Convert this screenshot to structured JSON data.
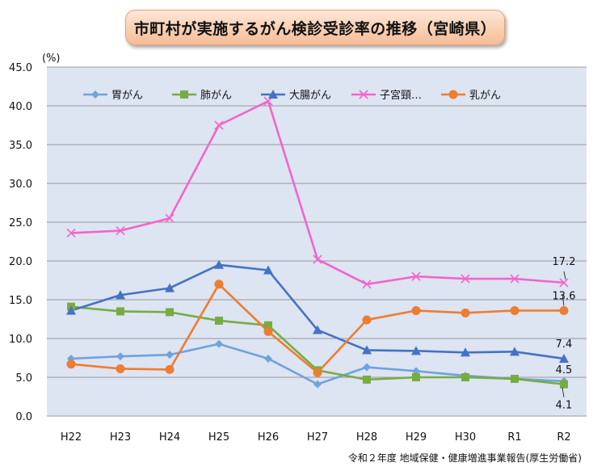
{
  "title": "市町村が実施するがん検診受診率の推移（宮崎県）",
  "source_note": "令和２年度 地域保健・健康増進事業報告(厚生労働省)",
  "colors": {
    "plot_bg": "#dde4f2",
    "stomach": "#6fa3dc",
    "lung": "#77ac43",
    "colorectal": "#4472c4",
    "cervical": "#f266c8",
    "breast": "#ed7d31"
  },
  "chart_data": {
    "type": "line",
    "unit_label": "(%)",
    "ylim": [
      0,
      45
    ],
    "ytick_labels": [
      "0.0",
      "5.0",
      "10.0",
      "15.0",
      "20.0",
      "25.0",
      "30.0",
      "35.0",
      "40.0",
      "45.0"
    ],
    "categories": [
      "H22",
      "H23",
      "H24",
      "H25",
      "H26",
      "H27",
      "H28",
      "H29",
      "H30",
      "R1",
      "R2"
    ],
    "series": [
      {
        "key": "stomach",
        "name": "胃がん",
        "marker": "diamond",
        "values": [
          7.4,
          7.7,
          7.9,
          9.3,
          7.4,
          4.1,
          6.3,
          5.8,
          5.2,
          4.8,
          4.5
        ]
      },
      {
        "key": "lung",
        "name": "肺がん",
        "marker": "square",
        "values": [
          14.1,
          13.5,
          13.4,
          12.3,
          11.7,
          5.9,
          4.7,
          5.0,
          5.0,
          4.8,
          4.1
        ]
      },
      {
        "key": "colorectal",
        "name": "大腸がん",
        "marker": "triangle",
        "values": [
          13.6,
          15.6,
          16.5,
          19.5,
          18.8,
          11.1,
          8.5,
          8.4,
          8.2,
          8.3,
          7.4
        ]
      },
      {
        "key": "cervical",
        "name": "子宮頸…",
        "marker": "x",
        "values": [
          23.6,
          23.9,
          25.5,
          37.5,
          40.6,
          20.2,
          17.0,
          18.0,
          17.7,
          17.7,
          17.2
        ]
      },
      {
        "key": "breast",
        "name": "乳がん",
        "marker": "circle",
        "values": [
          6.7,
          6.1,
          6.0,
          17.0,
          10.9,
          5.6,
          12.4,
          13.6,
          13.3,
          13.6,
          13.6
        ]
      }
    ],
    "end_labels": [
      {
        "key": "cervical",
        "text": "17.2"
      },
      {
        "key": "breast",
        "text": "13.6"
      },
      {
        "key": "colorectal",
        "text": "7.4"
      },
      {
        "key": "stomach",
        "text": "4.5"
      },
      {
        "key": "lung",
        "text": "4.1"
      }
    ]
  }
}
